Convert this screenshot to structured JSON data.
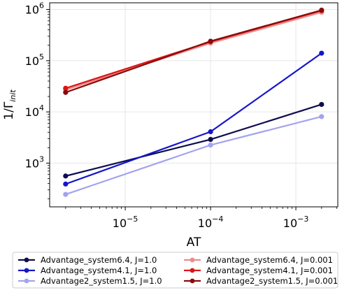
{
  "chart_data": {
    "type": "line",
    "xscale": "log",
    "yscale": "log",
    "xlabel": "AT",
    "ylabel": "1/Γ",
    "ylabel_sub": "init",
    "xlim": [
      1.3e-06,
      0.0031
    ],
    "ylim": [
      140,
      1350000.0
    ],
    "grid": true,
    "legend_position": "bottom (outside)",
    "x": [
      2e-06,
      0.0001,
      0.002
    ],
    "x_ticks": [
      {
        "value": 1e-05,
        "base": "10",
        "exp": "−5"
      },
      {
        "value": 0.0001,
        "base": "10",
        "exp": "−4"
      },
      {
        "value": 0.001,
        "base": "10",
        "exp": "−3"
      }
    ],
    "y_ticks": [
      {
        "value": 1000.0,
        "base": "10",
        "exp": "3"
      },
      {
        "value": 10000.0,
        "base": "10",
        "exp": "4"
      },
      {
        "value": 100000.0,
        "base": "10",
        "exp": "5"
      },
      {
        "value": 1000000.0,
        "base": "10",
        "exp": "6"
      }
    ],
    "series": [
      {
        "name": "Advantage_system6.4, J=1.0",
        "color": "#0d0d4f",
        "values": [
          560,
          2900,
          14000
        ]
      },
      {
        "name": "Advantage_system6.4, J=0.001",
        "color": "#f08a8a",
        "values": [
          27000,
          220000,
          880000
        ]
      },
      {
        "name": "Advantage_system4.1, J=1.0",
        "color": "#1515cc",
        "values": [
          390,
          4100,
          140000
        ]
      },
      {
        "name": "Advantage_system4.1, J=0.001",
        "color": "#dc1414",
        "values": [
          29000,
          235000,
          950000
        ]
      },
      {
        "name": "Advantage2_system1.5, J=1.0",
        "color": "#a3a3f0",
        "values": [
          245,
          2250,
          8100
        ]
      },
      {
        "name": "Advantage2_system1.5, J=0.001",
        "color": "#8a0a0a",
        "values": [
          24000,
          240000,
          970000
        ]
      }
    ]
  }
}
